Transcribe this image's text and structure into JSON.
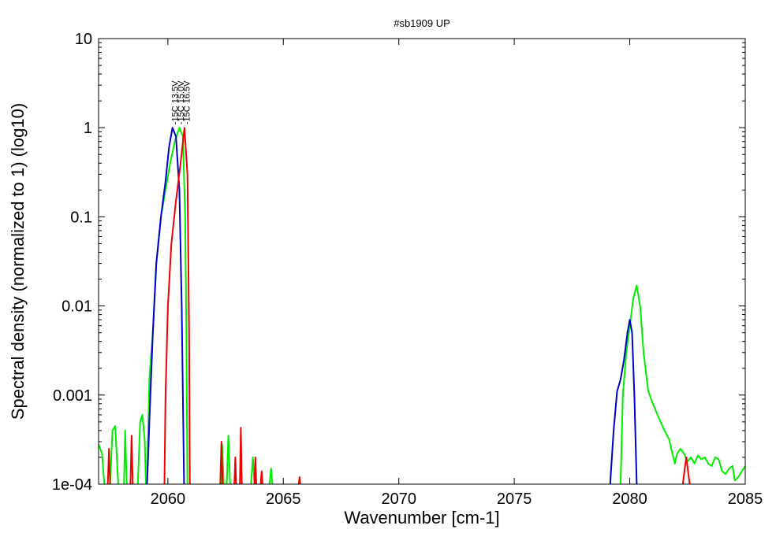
{
  "chart_data": {
    "type": "line",
    "title": "#sb1909 UP",
    "xlabel": "Wavenumber [cm-1]",
    "ylabel": "Spectral density (normalized to 1) (log10)",
    "xlim": [
      2057,
      2085
    ],
    "ylim": [
      0.0001,
      10
    ],
    "yscale": "log",
    "grid": false,
    "x_ticks": [
      "2060",
      "2065",
      "2070",
      "2075",
      "2080",
      "2085"
    ],
    "y_ticks": [
      "1e-04",
      "0.001",
      "0.01",
      "0.1",
      "1",
      "10"
    ],
    "series": [
      {
        "name": "-15C 13.5V",
        "color": "#0000cc",
        "peak_label_x": 2060.3,
        "segments": [
          [
            [
              2059.1,
              0.0001
            ],
            [
              2059.2,
              0.0005
            ],
            [
              2059.35,
              0.005
            ],
            [
              2059.5,
              0.03
            ],
            [
              2059.7,
              0.1
            ],
            [
              2059.9,
              0.25
            ],
            [
              2060.05,
              0.6
            ],
            [
              2060.2,
              1.0
            ],
            [
              2060.35,
              0.8
            ],
            [
              2060.5,
              0.2
            ],
            [
              2060.6,
              0.01
            ],
            [
              2060.7,
              0.0001
            ]
          ],
          [
            [
              2079.15,
              0.0001
            ],
            [
              2079.3,
              0.0004
            ],
            [
              2079.45,
              0.0011
            ],
            [
              2079.6,
              0.0015
            ],
            [
              2079.75,
              0.0025
            ],
            [
              2079.9,
              0.005
            ],
            [
              2080.0,
              0.007
            ],
            [
              2080.1,
              0.005
            ],
            [
              2080.2,
              0.001
            ],
            [
              2080.3,
              0.0001
            ]
          ]
        ]
      },
      {
        "name": "-15C 15.0V",
        "color": "#00ee00",
        "peak_label_x": 2060.55,
        "segments": [
          [
            [
              2057.0,
              0.00028
            ],
            [
              2057.15,
              0.00022
            ],
            [
              2057.25,
              0.0001
            ]
          ],
          [
            [
              2057.5,
              0.0001
            ],
            [
              2057.6,
              0.0004
            ],
            [
              2057.72,
              0.00045
            ],
            [
              2057.85,
              0.0001
            ]
          ],
          [
            [
              2058.1,
              0.0001
            ],
            [
              2058.15,
              0.0004
            ],
            [
              2058.22,
              0.0001
            ]
          ],
          [
            [
              2058.7,
              0.0001
            ],
            [
              2058.8,
              0.0005
            ],
            [
              2058.9,
              0.0006
            ],
            [
              2059.0,
              0.0003
            ],
            [
              2059.05,
              0.0001
            ]
          ],
          [
            [
              2059.1,
              0.0001
            ],
            [
              2059.2,
              0.0015
            ],
            [
              2059.35,
              0.005
            ],
            [
              2059.5,
              0.03
            ],
            [
              2059.7,
              0.1
            ],
            [
              2059.9,
              0.2
            ],
            [
              2060.1,
              0.4
            ],
            [
              2060.3,
              0.7
            ],
            [
              2060.5,
              1.0
            ],
            [
              2060.65,
              0.8
            ],
            [
              2060.75,
              0.1
            ],
            [
              2060.8,
              0.005
            ],
            [
              2060.85,
              0.0001
            ]
          ],
          [
            [
              2062.3,
              0.0001
            ],
            [
              2062.35,
              0.00028
            ],
            [
              2062.42,
              0.0001
            ]
          ],
          [
            [
              2062.55,
              0.0001
            ],
            [
              2062.62,
              0.00035
            ],
            [
              2062.7,
              0.0001
            ]
          ],
          [
            [
              2063.6,
              0.0001
            ],
            [
              2063.68,
              0.0002
            ],
            [
              2063.75,
              0.0001
            ]
          ],
          [
            [
              2064.4,
              0.0001
            ],
            [
              2064.47,
              0.00015
            ],
            [
              2064.53,
              0.0001
            ]
          ],
          [
            [
              2079.6,
              0.0001
            ],
            [
              2079.7,
              0.001
            ],
            [
              2079.85,
              0.003
            ],
            [
              2080.0,
              0.006
            ],
            [
              2080.15,
              0.012
            ],
            [
              2080.3,
              0.017
            ],
            [
              2080.45,
              0.01
            ],
            [
              2080.6,
              0.003
            ],
            [
              2080.8,
              0.0011
            ],
            [
              2081.0,
              0.0008
            ],
            [
              2081.2,
              0.0006
            ],
            [
              2081.5,
              0.0004
            ],
            [
              2081.7,
              0.00032
            ],
            [
              2081.85,
              0.00022
            ],
            [
              2081.95,
              0.00017
            ],
            [
              2082.05,
              0.00022
            ],
            [
              2082.2,
              0.00025
            ],
            [
              2082.35,
              0.00022
            ],
            [
              2082.5,
              0.00018
            ],
            [
              2082.65,
              0.0002
            ],
            [
              2082.8,
              0.00017
            ],
            [
              2082.95,
              0.00021
            ],
            [
              2083.1,
              0.00019
            ],
            [
              2083.25,
              0.0002
            ],
            [
              2083.4,
              0.00017
            ],
            [
              2083.55,
              0.00016
            ],
            [
              2083.7,
              0.0002
            ],
            [
              2083.85,
              0.00019
            ],
            [
              2084.0,
              0.00014
            ],
            [
              2084.15,
              0.00013
            ],
            [
              2084.3,
              0.00015
            ],
            [
              2084.45,
              0.00016
            ],
            [
              2084.55,
              0.00011
            ],
            [
              2084.7,
              0.00012
            ],
            [
              2084.85,
              0.00014
            ],
            [
              2085.0,
              0.00016
            ]
          ]
        ]
      },
      {
        "name": "-15C 16.5V",
        "color": "#ee0000",
        "peak_label_x": 2060.8,
        "segments": [
          [
            [
              2057.4,
              0.0001
            ],
            [
              2057.45,
              0.00025
            ],
            [
              2057.5,
              0.0001
            ]
          ],
          [
            [
              2058.38,
              0.0001
            ],
            [
              2058.43,
              0.00035
            ],
            [
              2058.48,
              0.0001
            ]
          ],
          [
            [
              2059.85,
              0.0001
            ],
            [
              2059.9,
              0.001
            ],
            [
              2060.0,
              0.01
            ],
            [
              2060.15,
              0.05
            ],
            [
              2060.35,
              0.15
            ],
            [
              2060.55,
              0.4
            ],
            [
              2060.72,
              1.0
            ],
            [
              2060.85,
              0.3
            ],
            [
              2060.92,
              0.005
            ],
            [
              2060.95,
              0.0001
            ]
          ],
          [
            [
              2062.27,
              0.0001
            ],
            [
              2062.32,
              0.0003
            ],
            [
              2062.37,
              0.0001
            ]
          ],
          [
            [
              2062.88,
              0.0001
            ],
            [
              2062.92,
              0.0002
            ],
            [
              2062.96,
              0.0001
            ]
          ],
          [
            [
              2063.12,
              0.0001
            ],
            [
              2063.16,
              0.00043
            ],
            [
              2063.2,
              0.0001
            ]
          ],
          [
            [
              2063.75,
              0.0001
            ],
            [
              2063.79,
              0.0002
            ],
            [
              2063.83,
              0.0001
            ]
          ],
          [
            [
              2064.02,
              0.0001
            ],
            [
              2064.06,
              0.00014
            ],
            [
              2064.1,
              0.0001
            ]
          ],
          [
            [
              2065.67,
              0.0001
            ],
            [
              2065.7,
              0.00012
            ],
            [
              2065.73,
              0.0001
            ]
          ],
          [
            [
              2082.3,
              0.0001
            ],
            [
              2082.38,
              0.00015
            ],
            [
              2082.45,
              0.0002
            ],
            [
              2082.52,
              0.00014
            ],
            [
              2082.6,
              0.0001
            ]
          ]
        ]
      }
    ]
  }
}
